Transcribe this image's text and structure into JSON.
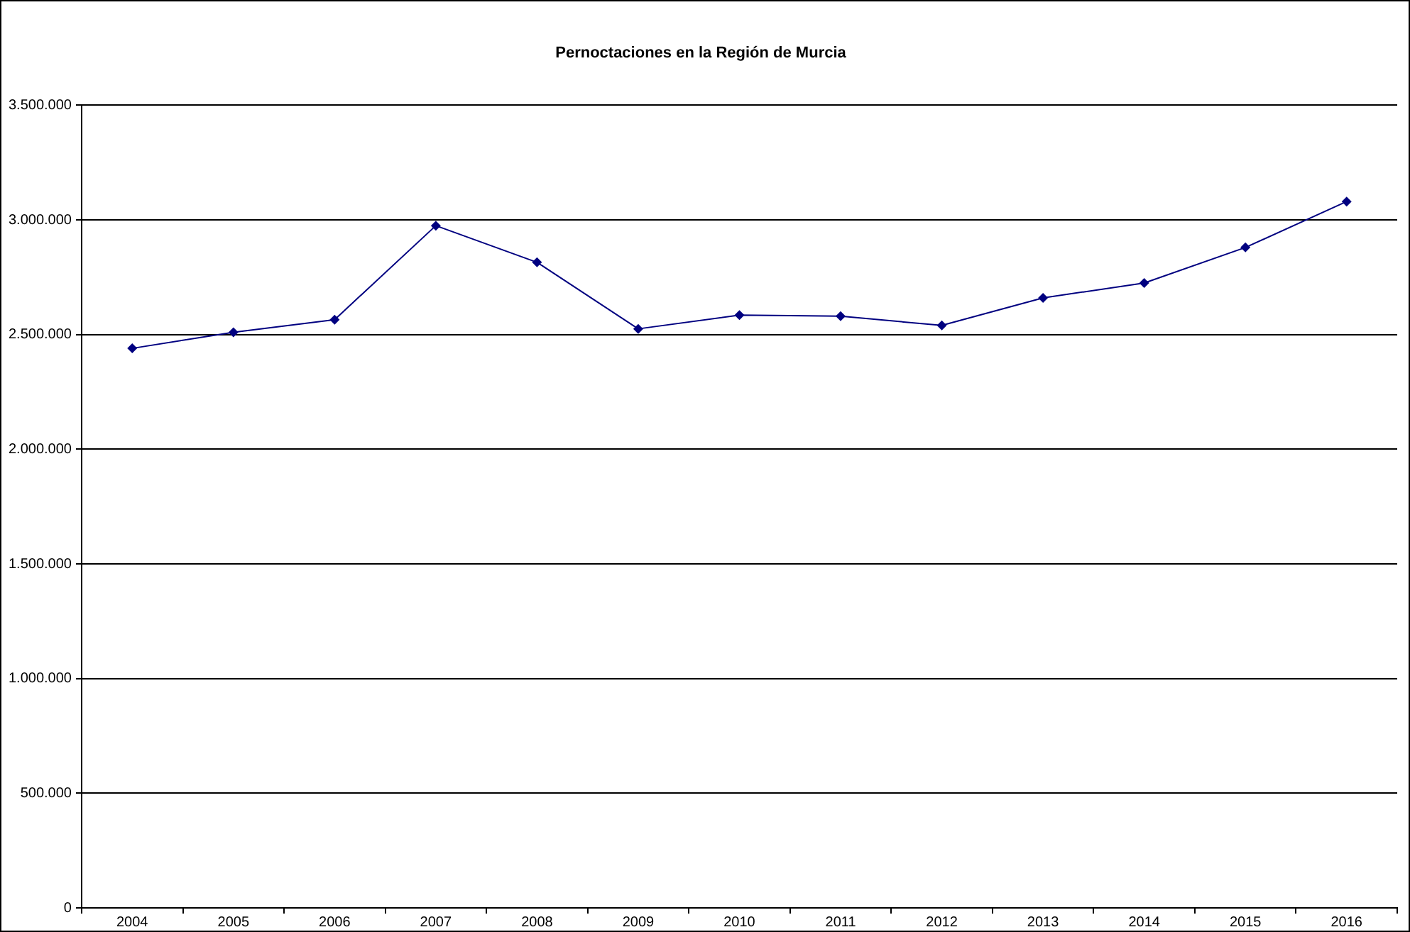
{
  "chart_data": {
    "type": "line",
    "title": "Pernoctaciones en la Región de Murcia",
    "categories": [
      "2004",
      "2005",
      "2006",
      "2007",
      "2008",
      "2009",
      "2010",
      "2011",
      "2012",
      "2013",
      "2014",
      "2015",
      "2016"
    ],
    "series": [
      {
        "color": "#000080",
        "values": [
          2440000,
          2510000,
          2565000,
          2975000,
          2815000,
          2525000,
          2585000,
          2580000,
          2540000,
          2660000,
          2725000,
          2880000,
          3080000
        ]
      }
    ],
    "ylim": [
      0,
      3500000
    ],
    "yticks": [
      {
        "value": 0,
        "label": "0"
      },
      {
        "value": 500000,
        "label": "500.000"
      },
      {
        "value": 1000000,
        "label": "1.000.000"
      },
      {
        "value": 1500000,
        "label": "1.500.000"
      },
      {
        "value": 2000000,
        "label": "2.000.000"
      },
      {
        "value": 2500000,
        "label": "2.500.000"
      },
      {
        "value": 3000000,
        "label": "3.000.000"
      },
      {
        "value": 3500000,
        "label": "3.500.000"
      }
    ],
    "grid": "y",
    "legend": false,
    "marker": "diamond",
    "line_style": "solid"
  }
}
